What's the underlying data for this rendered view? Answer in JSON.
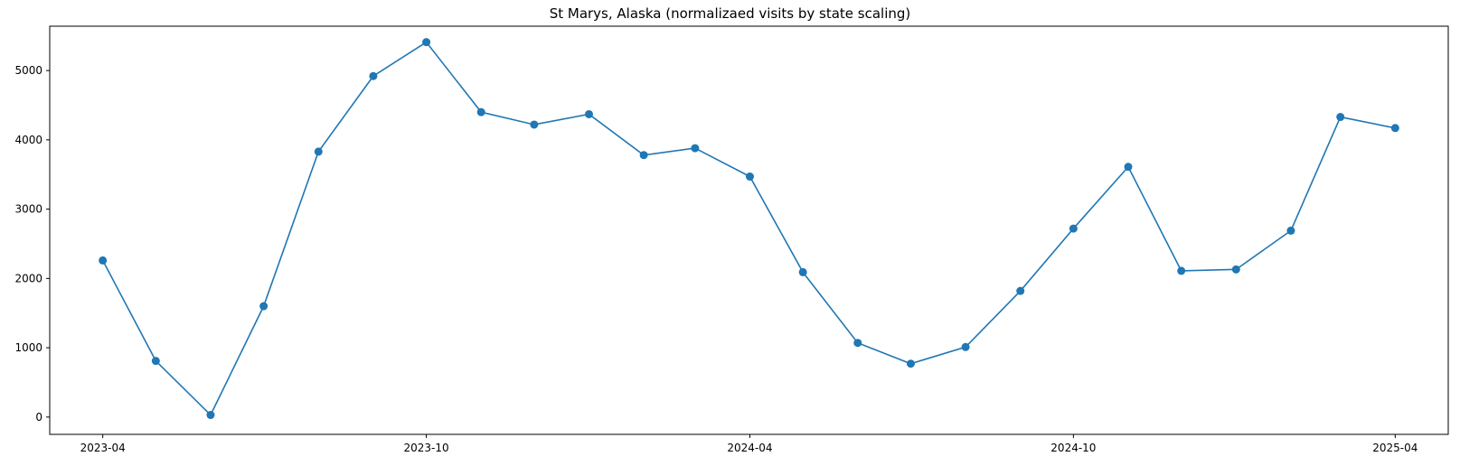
{
  "chart_data": {
    "type": "line",
    "title": "St Marys, Alaska (normalizaed visits by state scaling)",
    "xlabel": "",
    "ylabel": "",
    "x": [
      "2023-04-01",
      "2023-05-01",
      "2023-06-01",
      "2023-07-01",
      "2023-08-01",
      "2023-09-01",
      "2023-10-01",
      "2023-11-01",
      "2023-12-01",
      "2024-01-01",
      "2024-02-01",
      "2024-03-01",
      "2024-04-01",
      "2024-05-01",
      "2024-06-01",
      "2024-07-01",
      "2024-08-01",
      "2024-09-01",
      "2024-10-01",
      "2024-11-01",
      "2024-12-01",
      "2025-01-01",
      "2025-02-01",
      "2025-03-01",
      "2025-04-01"
    ],
    "series": [
      {
        "color": "#1f77b4",
        "marker": "circle",
        "values": [
          2260,
          810,
          30,
          1600,
          3830,
          4920,
          5410,
          4400,
          4220,
          4370,
          3780,
          3880,
          3470,
          2090,
          1070,
          770,
          1010,
          1820,
          2720,
          3610,
          2110,
          2130,
          2690,
          4330,
          4170
        ]
      }
    ],
    "x_tick_labels": [
      "2023-04",
      "2023-10",
      "2024-04",
      "2024-10",
      "2025-04"
    ],
    "y_ticks": [
      0,
      1000,
      2000,
      3000,
      4000,
      5000
    ],
    "xlim": [
      "2023-03-02",
      "2025-05-01"
    ],
    "ylim": [
      -250,
      5640
    ],
    "grid": false,
    "legend": false
  }
}
